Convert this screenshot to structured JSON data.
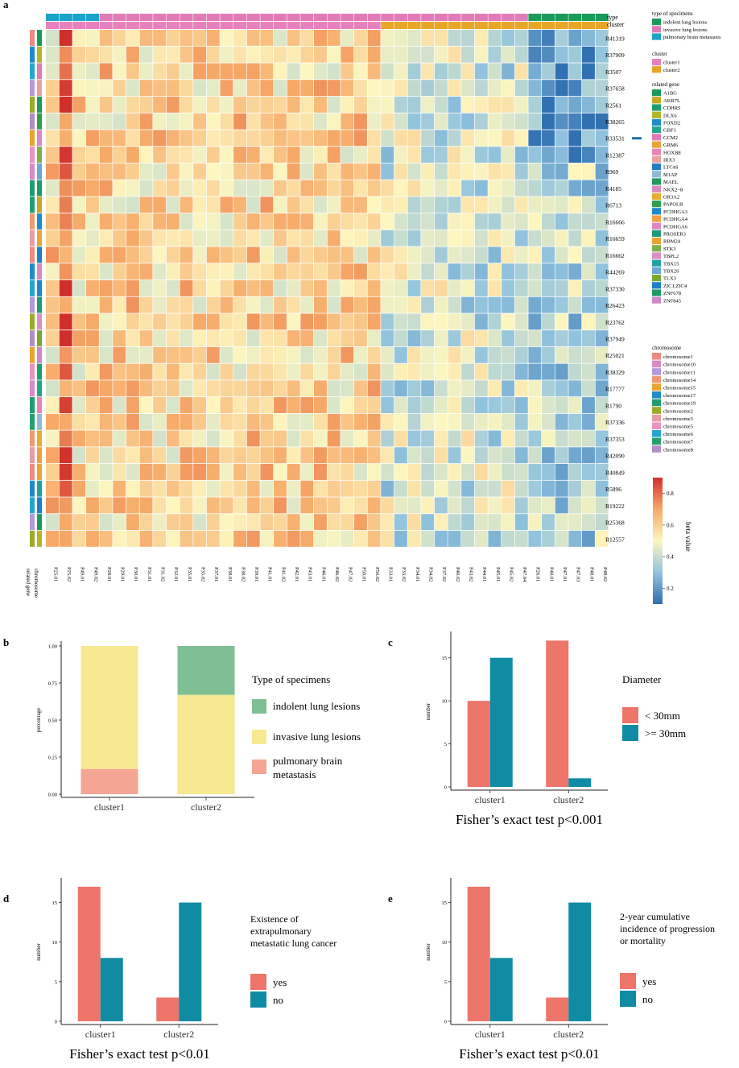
{
  "panels": {
    "a": "a",
    "b": "b",
    "c": "c",
    "d": "d",
    "e": "e"
  },
  "heatmap": {
    "rows": [
      "R41319",
      "R37909",
      "R3507",
      "R37658",
      "R2561",
      "R38265",
      "R33531",
      "R12387",
      "R969",
      "R4185",
      "R6713",
      "R16666",
      "R16659",
      "R16662",
      "R44269",
      "R37330",
      "R26423",
      "R23762",
      "R37949",
      "R25021",
      "R38329",
      "R17777",
      "R1790",
      "R37336",
      "R37353",
      "R42090",
      "R40849",
      "R5896",
      "R19222",
      "R25368",
      "R12557"
    ],
    "columns": [
      "P25.01",
      "P25.02",
      "P49.01",
      "P49.02",
      "P28.01",
      "P29.01",
      "P30.01",
      "P31.01",
      "P31.02",
      "P32.01",
      "P35.01",
      "P35.02",
      "P37.01",
      "P38.01",
      "P38.02",
      "P39.01",
      "P41.01",
      "P41.02",
      "P42.01",
      "P43.01",
      "P46.01",
      "P46.02",
      "P47.02",
      "P50.01",
      "P50.02",
      "P33.01",
      "P33.02",
      "P34.01",
      "P34.02",
      "P37.02",
      "P40.02",
      "P43.02",
      "P44.01",
      "P45.01",
      "P45.02",
      "P47.04",
      "P26.01",
      "P40.01",
      "P47.01",
      "P47.03",
      "P48.01",
      "P48.02"
    ],
    "annotation_labels": {
      "type": "type",
      "cluster": "cluster",
      "chromosome": "chromosome",
      "related_gene": "related gene"
    },
    "type_colors": {
      "indolent": "#1a9a5a",
      "invasive": "#e07bb8",
      "metastasis": "#19a3c8"
    },
    "cluster_colors": {
      "cluster1": "#e681bd",
      "cluster2": "#e7a628"
    },
    "colorscale": {
      "min": 0.1,
      "max": 0.9,
      "ticks": [
        "0.2",
        "0.4",
        "0.6",
        "0.8"
      ],
      "label": "beta value"
    },
    "marked_row": "R33531"
  },
  "legends": {
    "type": {
      "title": "type of specimens",
      "items": [
        {
          "label": "indolent lung lesions",
          "color": "#1a9a5a"
        },
        {
          "label": "invasive lung lesions",
          "color": "#e07bb8"
        },
        {
          "label": "pulmonary brain metastasis",
          "color": "#19a3c8"
        }
      ]
    },
    "cluster": {
      "title": "cluster",
      "items": [
        {
          "label": "cluster1",
          "color": "#e681bd"
        },
        {
          "label": "cluster2",
          "color": "#e7a628"
        }
      ]
    },
    "gene": {
      "title": "related gene",
      "items": [
        {
          "label": "A1BG",
          "color": "#1a9a5a"
        },
        {
          "label": "AKR7L",
          "color": "#c9a820"
        },
        {
          "label": "CDHR5",
          "color": "#1e9e70"
        },
        {
          "label": "DLX6",
          "color": "#b5b52a"
        },
        {
          "label": "FOXD2",
          "color": "#1d8cc7"
        },
        {
          "label": "GBF1",
          "color": "#23a58a"
        },
        {
          "label": "GCM2",
          "color": "#e07bb8"
        },
        {
          "label": "GRM6",
          "color": "#e6a53a"
        },
        {
          "label": "HOXB8",
          "color": "#e786b5"
        },
        {
          "label": "IRX3",
          "color": "#e8a0a0"
        },
        {
          "label": "LTC4S",
          "color": "#1f7fc0"
        },
        {
          "label": "M1AP",
          "color": "#8fbbd9"
        },
        {
          "label": "MAEL",
          "color": "#1e9a5e"
        },
        {
          "label": "NKX2−8",
          "color": "#d88ac0"
        },
        {
          "label": "OR3A2",
          "color": "#e6ad2f"
        },
        {
          "label": "PAPOLB",
          "color": "#2f9e4f"
        },
        {
          "label": "PCDHGA3",
          "color": "#1e88c8"
        },
        {
          "label": "PCDHGA4",
          "color": "#f0a040"
        },
        {
          "label": "PCDHGA6",
          "color": "#dd88c4"
        },
        {
          "label": "PROSER3",
          "color": "#1f9b7a"
        },
        {
          "label": "RBM24",
          "color": "#e8a532"
        },
        {
          "label": "STK3",
          "color": "#7fb04a"
        },
        {
          "label": "TBPL2",
          "color": "#d98fc2"
        },
        {
          "label": "TBX15",
          "color": "#20a0a0"
        },
        {
          "label": "TBX20",
          "color": "#6aa6d6"
        },
        {
          "label": "TLX3",
          "color": "#7aa833"
        },
        {
          "label": "ZIC1,ZIC4",
          "color": "#1d7fc4"
        },
        {
          "label": "ZNF678",
          "color": "#1e9a6a"
        },
        {
          "label": "ZNF845",
          "color": "#cc88c9"
        }
      ]
    },
    "chromosome": {
      "title": "chromosome",
      "items": [
        {
          "label": "chromosome1",
          "color": "#ee8a82"
        },
        {
          "label": "chromosome10",
          "color": "#d88ac6"
        },
        {
          "label": "chromosome11",
          "color": "#b49adb"
        },
        {
          "label": "chromosome14",
          "color": "#ee9b72"
        },
        {
          "label": "chromosome15",
          "color": "#e8a52e"
        },
        {
          "label": "chromosome17",
          "color": "#1f8cc6"
        },
        {
          "label": "chromosome19",
          "color": "#1f9d72"
        },
        {
          "label": "chromosome2",
          "color": "#9caa2a"
        },
        {
          "label": "chromosome3",
          "color": "#e69ca8"
        },
        {
          "label": "chromosome5",
          "color": "#e893c0"
        },
        {
          "label": "chromosome6",
          "color": "#25a6cf"
        },
        {
          "label": "chromosome7",
          "color": "#24a06f"
        },
        {
          "label": "chromosome8",
          "color": "#b08fc6"
        }
      ]
    }
  },
  "chart_data": [
    {
      "panel": "b",
      "type": "bar",
      "categories": [
        "cluster1",
        "cluster2"
      ],
      "ylabel": "percentage",
      "yticks": [
        "1.00",
        "0.75",
        "0.50",
        "0.25",
        "0.00"
      ],
      "ylim": [
        0,
        1
      ],
      "legend_title": "Type of specimens",
      "series": [
        {
          "name": "pulmonary brain metastasis",
          "values": [
            0.17,
            0.0
          ],
          "color": "#f4a593"
        },
        {
          "name": "invasive lung lesions",
          "values": [
            0.83,
            0.67
          ],
          "color": "#f8e892"
        },
        {
          "name": "indolent lung lesions",
          "values": [
            0.0,
            0.33
          ],
          "color": "#7fbf94"
        }
      ],
      "legend_order": [
        "indolent lung lesions",
        "invasive lung lesions",
        "pulmonary brain metastasis"
      ],
      "legend_labels": [
        "indolent lung lesions",
        "invasive lung lesions",
        "pulmonary brain",
        "metastasis"
      ]
    },
    {
      "panel": "c",
      "type": "bar",
      "categories": [
        "cluster1",
        "cluster2"
      ],
      "ylabel": "number",
      "yticks": [
        "0",
        "5",
        "10",
        "15"
      ],
      "ylim": [
        0,
        17.5
      ],
      "legend_title": "Diameter",
      "series": [
        {
          "name": "< 30mm",
          "values": [
            10,
            17
          ],
          "color": "#ee756a"
        },
        {
          "name": ">= 30mm",
          "values": [
            15,
            1
          ],
          "color": "#0f8ca3"
        }
      ],
      "caption": "Fisher’s exact test p<0.001"
    },
    {
      "panel": "d",
      "type": "bar",
      "categories": [
        "cluster1",
        "cluster2"
      ],
      "ylabel": "number",
      "yticks": [
        "0",
        "5",
        "10",
        "15"
      ],
      "ylim": [
        0,
        17.5
      ],
      "legend_title_lines": [
        "Existence of",
        "extrapulmonary",
        "metastatic lung cancer"
      ],
      "series": [
        {
          "name": "yes",
          "values": [
            17,
            3
          ],
          "color": "#ee756a"
        },
        {
          "name": "no",
          "values": [
            8,
            15
          ],
          "color": "#0f8ca3"
        }
      ],
      "caption": "Fisher’s exact test p<0.01"
    },
    {
      "panel": "e",
      "type": "bar",
      "categories": [
        "cluster1",
        "cluster2"
      ],
      "ylabel": "number",
      "yticks": [
        "0",
        "5",
        "10",
        "15"
      ],
      "ylim": [
        0,
        17.5
      ],
      "legend_title_lines": [
        "2-year cumulative",
        "incidence of progression",
        "or mortality"
      ],
      "series": [
        {
          "name": "yes",
          "values": [
            17,
            3
          ],
          "color": "#ee756a"
        },
        {
          "name": "no",
          "values": [
            8,
            15
          ],
          "color": "#0f8ca3"
        }
      ],
      "caption": "Fisher’s exact test p<0.01"
    }
  ]
}
